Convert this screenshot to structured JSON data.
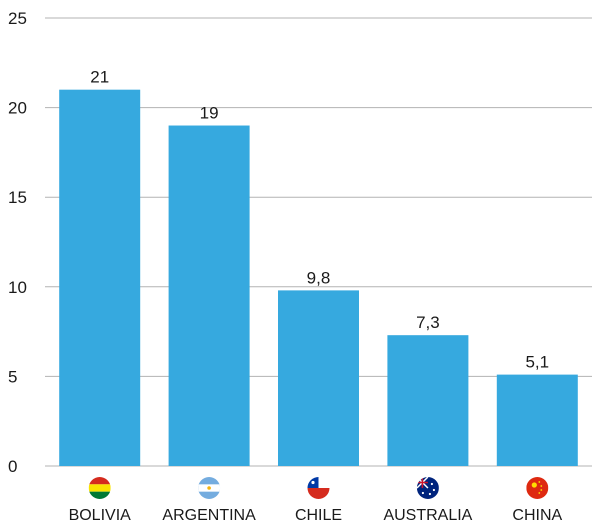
{
  "chart_data": {
    "type": "bar",
    "categories": [
      "BOLIVIA",
      "ARGENTINA",
      "CHILE",
      "AUSTRALIA",
      "CHINA"
    ],
    "values": [
      21,
      19,
      9.8,
      7.3,
      5.1
    ],
    "data_labels": [
      "21",
      "19",
      "9,8",
      "7,3",
      "5,1"
    ],
    "y_ticks": [
      "0",
      "5",
      "10",
      "15",
      "20",
      "25"
    ],
    "ylim": [
      0,
      25
    ],
    "grid": true,
    "legend": "none",
    "bar_color": "#36a9df",
    "grid_color": "#b3b3b3",
    "flag_icons": [
      "bolivia-flag-icon",
      "argentina-flag-icon",
      "chile-flag-icon",
      "australia-flag-icon",
      "china-flag-icon"
    ]
  }
}
